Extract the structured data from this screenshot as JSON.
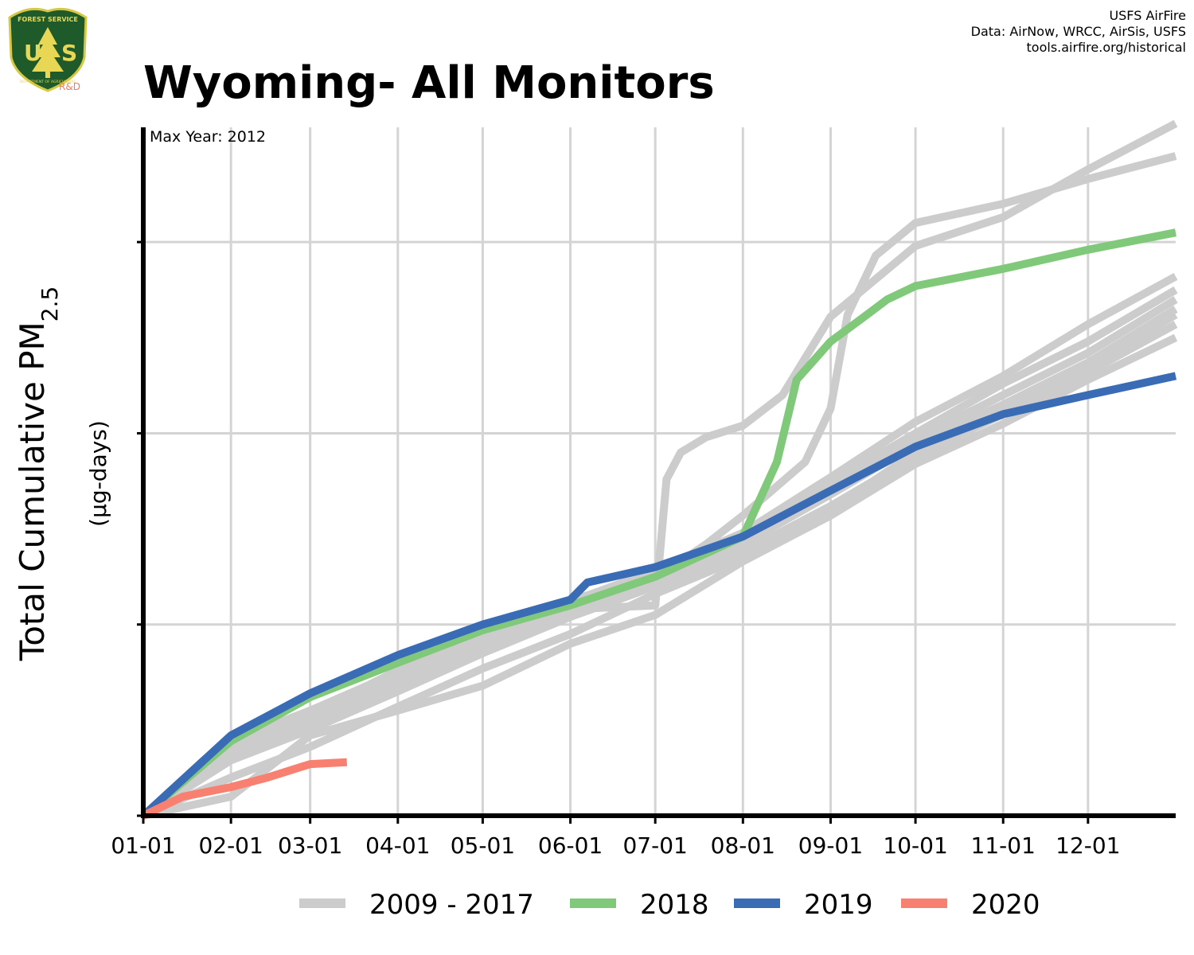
{
  "header": {
    "title": "Wyoming- All Monitors",
    "credits": [
      "USFS AirFire",
      "Data: AirNow, WRCC, AirSis, USFS",
      "tools.airfire.org/historical"
    ],
    "logo": {
      "top_text": "FOREST SERVICE",
      "letters": "US",
      "bottom_text": "DEPARTMENT OF AGRICULTURE",
      "suffix": "R&D"
    }
  },
  "chart_data": {
    "type": "line",
    "title": "Wyoming- All Monitors",
    "annotation": "Max Year: 2012",
    "ylabel": "Total Cumulative PM",
    "ylabel_sub": "2.5",
    "ylabel_units": "(µg-days)",
    "xlabel": "",
    "x_ticks": [
      "01-01",
      "02-01",
      "03-01",
      "04-01",
      "05-01",
      "06-01",
      "07-01",
      "08-01",
      "09-01",
      "10-01",
      "11-01",
      "12-01"
    ],
    "x_tick_days": [
      1,
      32,
      60,
      91,
      121,
      152,
      182,
      213,
      244,
      274,
      305,
      335
    ],
    "xlim": [
      1,
      366
    ],
    "ylim": [
      0,
      3.6
    ],
    "y_ticks": [
      0,
      1,
      2,
      3
    ],
    "y_tick_labels_shown": false,
    "grid": true,
    "legend_position": "bottom",
    "legend": [
      {
        "name": "2009 - 2017",
        "color": "#cccccc"
      },
      {
        "name": "2018",
        "color": "#80c97a"
      },
      {
        "name": "2019",
        "color": "#3a6bb5"
      },
      {
        "name": "2020",
        "color": "#f88070"
      }
    ],
    "series": [
      {
        "group": "2009 - 2017",
        "color": "#cccccc",
        "x": [
          1,
          32,
          60,
          91,
          121,
          152,
          182,
          186,
          191,
          200,
          213,
          227,
          244,
          274,
          305,
          335,
          366
        ],
        "y": [
          0,
          0.39,
          0.53,
          0.76,
          0.92,
          1.08,
          1.1,
          1.76,
          1.9,
          1.98,
          2.04,
          2.2,
          2.61,
          2.98,
          3.13,
          3.38,
          3.62
        ]
      },
      {
        "group": "2009 - 2017",
        "color": "#cccccc",
        "x": [
          1,
          32,
          60,
          91,
          121,
          152,
          182,
          200,
          213,
          235,
          244,
          250,
          260,
          274,
          305,
          335,
          366
        ],
        "y": [
          0,
          0.39,
          0.55,
          0.75,
          0.98,
          1.13,
          1.24,
          1.42,
          1.57,
          1.85,
          2.13,
          2.62,
          2.93,
          3.1,
          3.2,
          3.33,
          3.45
        ]
      },
      {
        "group": "2009 - 2017",
        "color": "#cccccc",
        "x": [
          1,
          32,
          60,
          91,
          121,
          152,
          182,
          213,
          244,
          274,
          305,
          335,
          366
        ],
        "y": [
          0,
          0.37,
          0.55,
          0.74,
          0.94,
          1.12,
          1.28,
          1.48,
          1.77,
          2.06,
          2.3,
          2.57,
          2.82
        ]
      },
      {
        "group": "2009 - 2017",
        "color": "#cccccc",
        "x": [
          1,
          32,
          60,
          91,
          121,
          152,
          182,
          213,
          244,
          274,
          305,
          335,
          366
        ],
        "y": [
          0,
          0.35,
          0.52,
          0.73,
          0.93,
          1.1,
          1.27,
          1.46,
          1.74,
          2.0,
          2.26,
          2.48,
          2.75
        ]
      },
      {
        "group": "2009 - 2017",
        "color": "#cccccc",
        "x": [
          1,
          32,
          60,
          91,
          121,
          152,
          182,
          213,
          244,
          274,
          305,
          335,
          366
        ],
        "y": [
          0,
          0.33,
          0.5,
          0.71,
          0.91,
          1.09,
          1.25,
          1.45,
          1.7,
          1.97,
          2.2,
          2.42,
          2.7
        ]
      },
      {
        "group": "2009 - 2017",
        "color": "#cccccc",
        "x": [
          1,
          32,
          60,
          91,
          121,
          152,
          182,
          213,
          244,
          274,
          305,
          335,
          366
        ],
        "y": [
          0,
          0.31,
          0.47,
          0.68,
          0.88,
          1.06,
          1.22,
          1.42,
          1.68,
          1.94,
          2.15,
          2.37,
          2.65
        ]
      },
      {
        "group": "2009 - 2017",
        "color": "#cccccc",
        "x": [
          1,
          32,
          60,
          91,
          121,
          152,
          182,
          213,
          244,
          274,
          305,
          335,
          366
        ],
        "y": [
          0,
          0.29,
          0.45,
          0.65,
          0.85,
          1.04,
          1.2,
          1.38,
          1.62,
          1.88,
          2.1,
          2.32,
          2.57
        ]
      },
      {
        "group": "2009 - 2017",
        "color": "#cccccc",
        "x": [
          1,
          32,
          60,
          91,
          121,
          152,
          182,
          213,
          244,
          274,
          305,
          335,
          366
        ],
        "y": [
          0,
          0.1,
          0.42,
          0.55,
          0.68,
          0.9,
          1.05,
          1.33,
          1.57,
          1.84,
          2.05,
          2.28,
          2.5
        ]
      },
      {
        "group": "2009 - 2017",
        "color": "#cccccc",
        "x": [
          1,
          32,
          60,
          91,
          121,
          152,
          182,
          213,
          244,
          274,
          305,
          335,
          366
        ],
        "y": [
          0,
          0.2,
          0.36,
          0.57,
          0.77,
          0.95,
          1.16,
          1.35,
          1.6,
          1.9,
          2.12,
          2.35,
          2.62
        ]
      },
      {
        "name": "2018",
        "group": "2018",
        "color": "#80c97a",
        "x": [
          1,
          32,
          60,
          91,
          121,
          152,
          182,
          213,
          225,
          232,
          244,
          255,
          264,
          274,
          305,
          335,
          366
        ],
        "y": [
          0,
          0.39,
          0.62,
          0.8,
          0.97,
          1.1,
          1.25,
          1.46,
          1.85,
          2.28,
          2.48,
          2.6,
          2.7,
          2.77,
          2.86,
          2.96,
          3.05
        ]
      },
      {
        "name": "2019",
        "group": "2019",
        "color": "#3a6bb5",
        "x": [
          1,
          32,
          60,
          91,
          121,
          152,
          158,
          182,
          213,
          244,
          274,
          305,
          335,
          366
        ],
        "y": [
          0,
          0.42,
          0.64,
          0.84,
          1.0,
          1.13,
          1.22,
          1.3,
          1.46,
          1.7,
          1.93,
          2.1,
          2.2,
          2.3
        ]
      },
      {
        "name": "2020",
        "group": "2020",
        "color": "#f88070",
        "x": [
          1,
          15,
          32,
          45,
          60,
          73
        ],
        "y": [
          0,
          0.1,
          0.15,
          0.2,
          0.27,
          0.28
        ]
      }
    ]
  }
}
